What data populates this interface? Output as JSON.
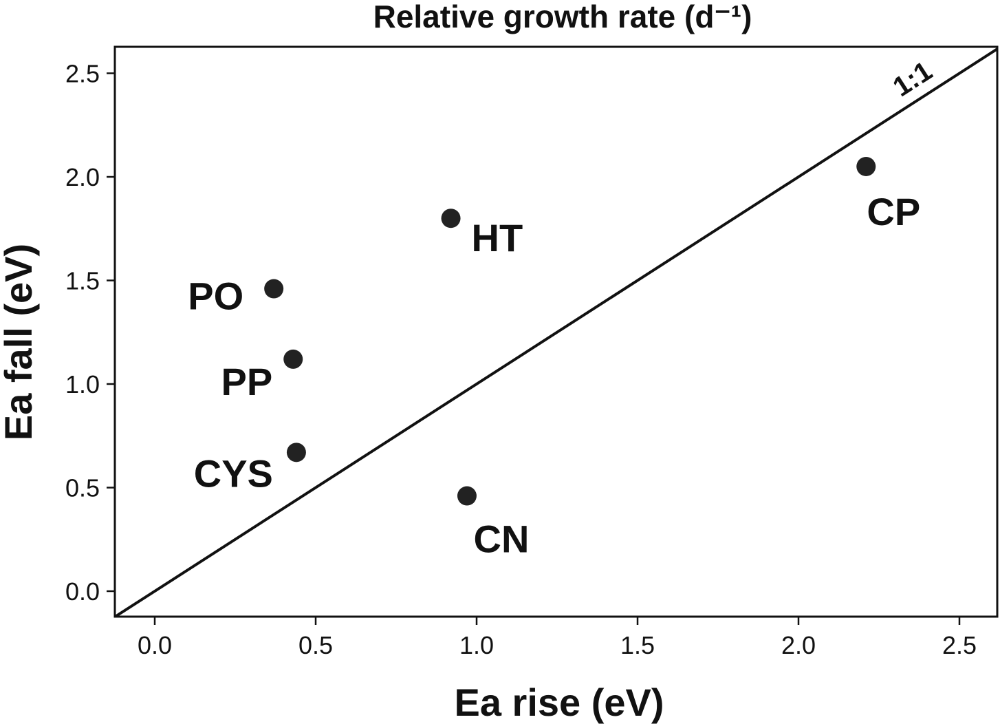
{
  "chart_data": {
    "type": "scatter",
    "title": "Relative growth rate (d⁻¹)",
    "xlabel": "Ea rise (eV)",
    "ylabel": "Ea fall (eV)",
    "xlim": [
      -0.12,
      2.62
    ],
    "ylim": [
      -0.12,
      2.62
    ],
    "x_ticks": [
      "0.0",
      "0.5",
      "1.0",
      "1.5",
      "2.0",
      "2.5"
    ],
    "y_ticks": [
      "0.0",
      "0.5",
      "1.0",
      "1.5",
      "2.0",
      "2.5"
    ],
    "grid": false,
    "reference_line": {
      "label": "1:1",
      "slope": 1,
      "intercept": 0
    },
    "points": [
      {
        "label": "PO",
        "x": 0.37,
        "y": 1.46
      },
      {
        "label": "PP",
        "x": 0.43,
        "y": 1.12
      },
      {
        "label": "CYS",
        "x": 0.44,
        "y": 0.67
      },
      {
        "label": "HT",
        "x": 0.92,
        "y": 1.8
      },
      {
        "label": "CN",
        "x": 0.97,
        "y": 0.46
      },
      {
        "label": "CP",
        "x": 2.21,
        "y": 2.05
      }
    ],
    "marker_color": "#222222",
    "line_color": "#111111"
  }
}
